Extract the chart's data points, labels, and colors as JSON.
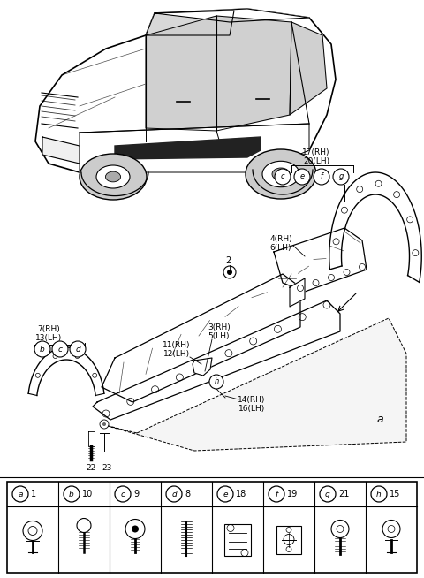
{
  "bg_color": "#ffffff",
  "legend_items": [
    {
      "label": "a",
      "number": "1",
      "col": 0
    },
    {
      "label": "b",
      "number": "10",
      "col": 1
    },
    {
      "label": "c",
      "number": "9",
      "col": 2
    },
    {
      "label": "d",
      "number": "8",
      "col": 3
    },
    {
      "label": "e",
      "number": "18",
      "col": 4
    },
    {
      "label": "f",
      "number": "19",
      "col": 5
    },
    {
      "label": "g",
      "number": "21",
      "col": 6
    },
    {
      "label": "h",
      "number": "15",
      "col": 7
    }
  ]
}
